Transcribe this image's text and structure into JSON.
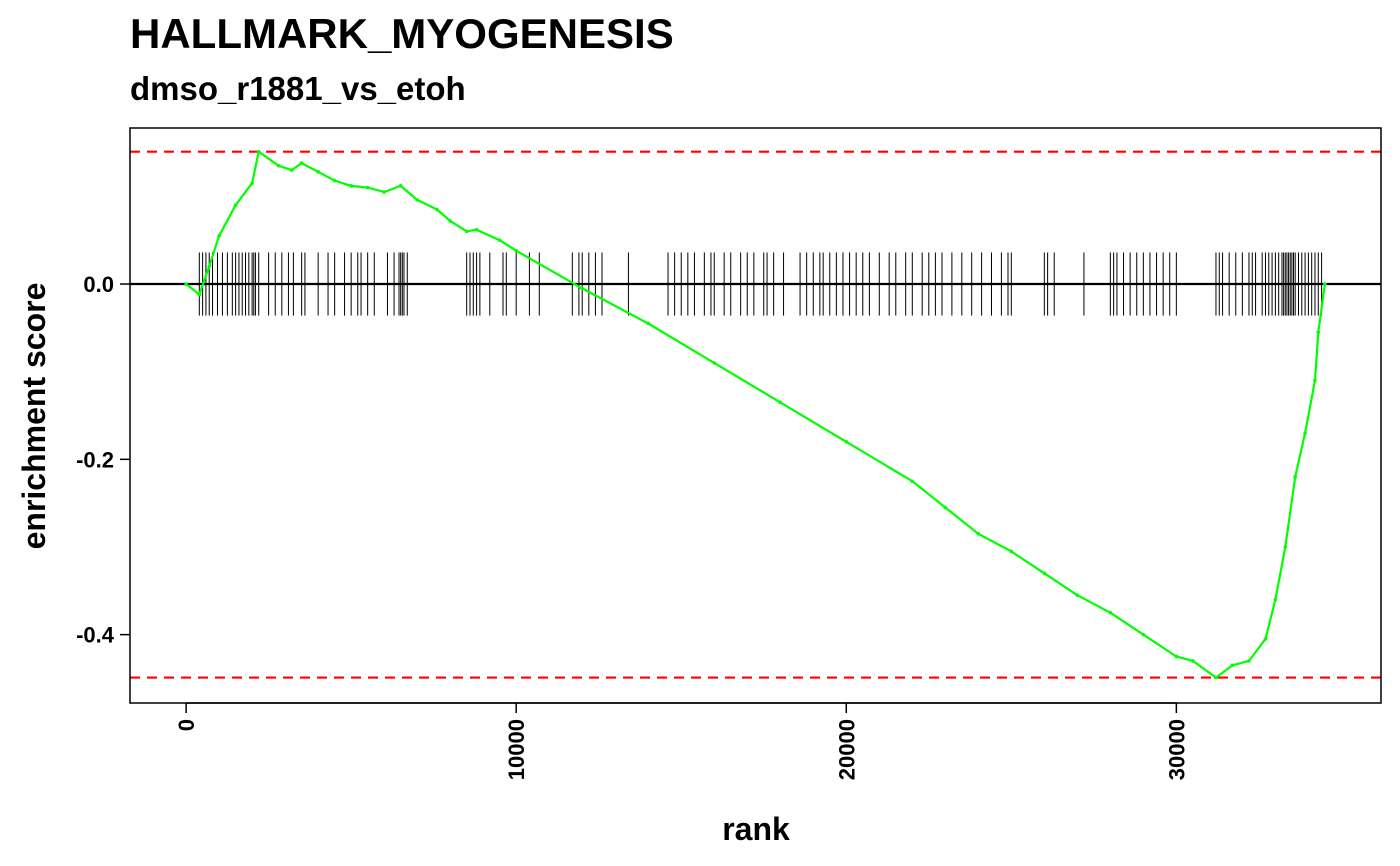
{
  "chart_data": {
    "type": "line",
    "title": "HALLMARK_MYOGENESIS",
    "subtitle": "dmso_r1881_vs_etoh",
    "xlabel": "rank",
    "ylabel": "enrichment score",
    "xlim": [
      -1700,
      36200
    ],
    "ylim": [
      -0.478,
      0.178
    ],
    "x_ticks": [
      0,
      10000,
      20000,
      30000
    ],
    "x_tick_labels": [
      "0",
      "10000",
      "20000",
      "30000"
    ],
    "y_ticks": [
      0.0,
      -0.2,
      -0.4
    ],
    "y_tick_labels": [
      "0.0",
      "-0.2",
      "-0.4"
    ],
    "grid": false,
    "legend": "none",
    "colors": {
      "running_score": "#00ff00",
      "bounds": "#ff0000",
      "zero_line": "#000000",
      "hits": "#000000"
    },
    "bounds": [
      0.151,
      -0.449
    ],
    "series": [
      {
        "x": [
          0,
          400,
          700,
          1000,
          1500,
          2000,
          2200,
          2800,
          3200,
          3500,
          4000,
          4500,
          5000,
          5500,
          6000,
          6500,
          7000,
          7600,
          8000,
          8500,
          8800,
          9500,
          10000,
          12000,
          14000,
          16000,
          18000,
          20000,
          22000,
          23000,
          24000,
          25000,
          26000,
          27000,
          28000,
          29000,
          30000,
          30500,
          31200,
          31700,
          32200,
          32700,
          33000,
          33300,
          33600,
          33900,
          34200,
          34300,
          34500
        ],
        "y": [
          0.0,
          -0.012,
          0.02,
          0.055,
          0.09,
          0.115,
          0.151,
          0.135,
          0.13,
          0.138,
          0.128,
          0.118,
          0.112,
          0.11,
          0.105,
          0.112,
          0.096,
          0.085,
          0.072,
          0.06,
          0.062,
          0.05,
          0.038,
          -0.005,
          -0.045,
          -0.09,
          -0.135,
          -0.18,
          -0.225,
          -0.255,
          -0.285,
          -0.305,
          -0.33,
          -0.355,
          -0.375,
          -0.4,
          -0.425,
          -0.43,
          -0.449,
          -0.435,
          -0.43,
          -0.405,
          -0.36,
          -0.3,
          -0.22,
          -0.17,
          -0.11,
          -0.055,
          0.0
        ]
      }
    ],
    "hit_ranks": [
      400,
      500,
      600,
      700,
      800,
      950,
      1100,
      1250,
      1400,
      1500,
      1600,
      1700,
      1800,
      1900,
      2000,
      2050,
      2100,
      2200,
      2500,
      2700,
      2900,
      3100,
      3250,
      3500,
      3600,
      4000,
      4300,
      4500,
      4800,
      5000,
      5200,
      5300,
      5500,
      5700,
      6100,
      6300,
      6450,
      6500,
      6550,
      6600,
      6700,
      8500,
      8600,
      8700,
      8800,
      8900,
      9200,
      9600,
      9700,
      10000,
      10400,
      10700,
      11700,
      11900,
      12000,
      12200,
      12400,
      12600,
      13400,
      14600,
      14800,
      15000,
      15200,
      15400,
      15700,
      15900,
      16000,
      16300,
      16500,
      16800,
      17000,
      17200,
      17500,
      17600,
      17800,
      18100,
      18600,
      18800,
      19000,
      19200,
      19300,
      19500,
      19700,
      19900,
      20100,
      20300,
      20500,
      20700,
      21000,
      21300,
      21500,
      21800,
      22000,
      22300,
      22500,
      22700,
      22900,
      23200,
      23500,
      23800,
      24100,
      24400,
      24700,
      24900,
      25000,
      26000,
      26100,
      26300,
      27200,
      28000,
      28100,
      28200,
      28400,
      28600,
      28800,
      29000,
      29200,
      29400,
      29600,
      29800,
      30000,
      31200,
      31300,
      31400,
      31600,
      31800,
      32000,
      32200,
      32300,
      32400,
      32600,
      32700,
      32800,
      32900,
      33000,
      33100,
      33200,
      33250,
      33300,
      33350,
      33400,
      33450,
      33500,
      33550,
      33600,
      33700,
      33800,
      33900,
      34000,
      34100,
      34200,
      34300,
      34400
    ]
  }
}
